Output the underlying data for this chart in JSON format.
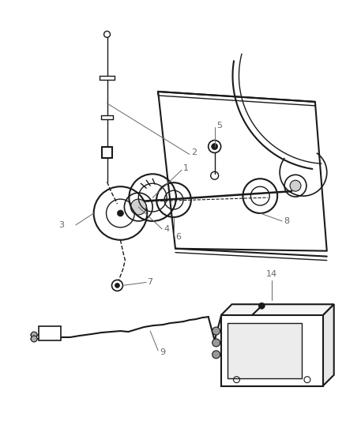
{
  "bg_color": "#ffffff",
  "line_color": "#1a1a1a",
  "label_color": "#666666",
  "figsize": [
    4.38,
    5.33
  ],
  "dpi": 100
}
